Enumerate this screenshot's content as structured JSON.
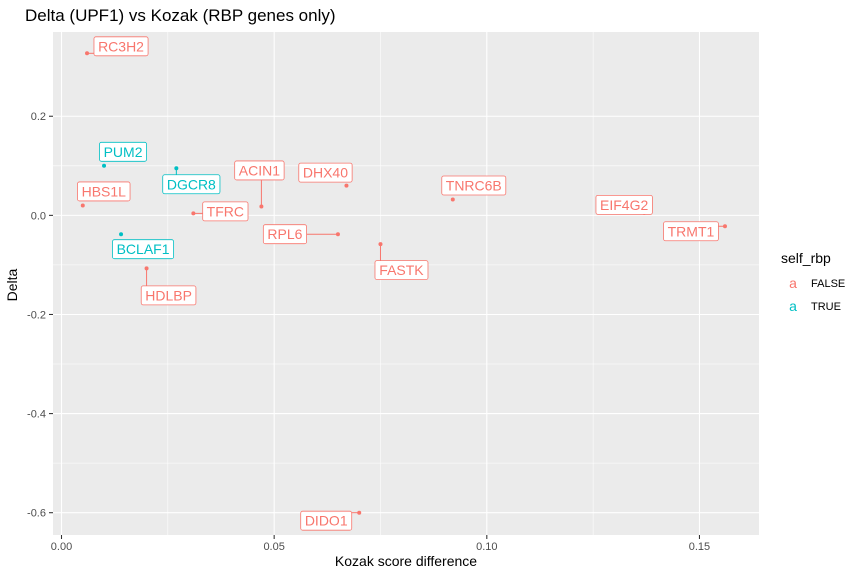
{
  "chart_data": {
    "type": "scatter",
    "title": "Delta (UPF1) vs Kozak (RBP genes only)",
    "xlabel": "Kozak score difference",
    "ylabel": "Delta",
    "xlim": [
      -0.002,
      0.164
    ],
    "ylim": [
      -0.645,
      0.37
    ],
    "xticks": [
      0.0,
      0.05,
      0.1,
      0.15
    ],
    "xtick_labels": [
      "0.00",
      "0.05",
      "0.10",
      "0.15"
    ],
    "yticks": [
      -0.6,
      -0.4,
      -0.2,
      0.0,
      0.2
    ],
    "ytick_labels": [
      "-0.6",
      "-0.4",
      "-0.2",
      "0.0",
      "0.2"
    ],
    "grid": true,
    "legend": {
      "title": "self_rbp",
      "position": "right",
      "entries": [
        {
          "key": "FALSE",
          "symbol": "a",
          "color": "#F8766D"
        },
        {
          "key": "TRUE",
          "symbol": "a",
          "color": "#00BFC4"
        }
      ]
    },
    "points": [
      {
        "label": "RC3H2",
        "x": 0.006,
        "y": 0.327,
        "self_rbp": "FALSE"
      },
      {
        "label": "PUM2",
        "x": 0.01,
        "y": 0.1,
        "self_rbp": "TRUE"
      },
      {
        "label": "HBS1L",
        "x": 0.005,
        "y": 0.02,
        "self_rbp": "FALSE"
      },
      {
        "label": "DGCR8",
        "x": 0.027,
        "y": 0.095,
        "self_rbp": "TRUE"
      },
      {
        "label": "BCLAF1",
        "x": 0.014,
        "y": -0.038,
        "self_rbp": "TRUE"
      },
      {
        "label": "HDLBP",
        "x": 0.02,
        "y": -0.107,
        "self_rbp": "FALSE"
      },
      {
        "label": "TFRC",
        "x": 0.031,
        "y": 0.004,
        "self_rbp": "FALSE"
      },
      {
        "label": "ACIN1",
        "x": 0.047,
        "y": 0.018,
        "self_rbp": "FALSE"
      },
      {
        "label": "DHX40",
        "x": 0.067,
        "y": 0.06,
        "self_rbp": "FALSE"
      },
      {
        "label": "RPL6",
        "x": 0.065,
        "y": -0.038,
        "self_rbp": "FALSE"
      },
      {
        "label": "FASTK",
        "x": 0.075,
        "y": -0.058,
        "self_rbp": "FALSE"
      },
      {
        "label": "TNRC6B",
        "x": 0.092,
        "y": 0.032,
        "self_rbp": "FALSE"
      },
      {
        "label": "EIF4G2",
        "x": 0.137,
        "y": 0.005,
        "self_rbp": "FALSE"
      },
      {
        "label": "TRMT1",
        "x": 0.156,
        "y": -0.022,
        "self_rbp": "FALSE"
      },
      {
        "label": "DIDO1",
        "x": 0.07,
        "y": -0.6,
        "self_rbp": "FALSE"
      }
    ]
  }
}
